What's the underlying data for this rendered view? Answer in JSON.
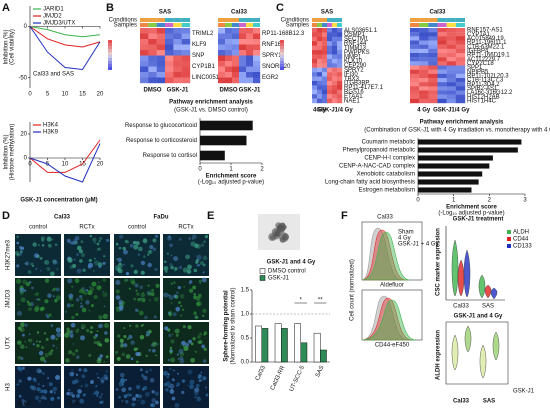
{
  "letters": [
    "A",
    "B",
    "C",
    "D",
    "E",
    "F"
  ],
  "chart_data": [
    {
      "type": "line",
      "y_label": [
        "Inhibition (%)",
        "(Cell viability)"
      ],
      "annotation": "Cal33 and SAS",
      "x": [
        0,
        5,
        10,
        15,
        20
      ],
      "xlim": [
        0,
        20
      ],
      "xticks": [
        0,
        5,
        10,
        15,
        20
      ],
      "ylim": [
        -60,
        20
      ],
      "yticks": [
        -50,
        0
      ],
      "legend": "upper left",
      "series": [
        {
          "name": "JARID1",
          "color": "#3cb44b",
          "values": [
            0,
            -3,
            -8,
            -10,
            -8
          ]
        },
        {
          "name": "JMJD2",
          "color": "#e02020",
          "values": [
            0,
            -12,
            -18,
            -20,
            -15
          ]
        },
        {
          "name": "JMJD3/UTX",
          "color": "#2030c0",
          "values": [
            0,
            -25,
            -40,
            -42,
            -15
          ]
        }
      ]
    },
    {
      "type": "line",
      "y_label": [
        "Inhibition (%)",
        "(Histone methylation)"
      ],
      "x_label": "GSK-J1 concentration (μM)",
      "x": [
        0,
        5,
        10,
        15,
        20
      ],
      "xlim": [
        0,
        20
      ],
      "xticks": [
        0,
        5,
        10,
        15,
        20
      ],
      "ylim": [
        -20,
        30
      ],
      "yticks": [
        0,
        20
      ],
      "legend": "upper left",
      "series": [
        {
          "name": "H3K4",
          "color": "#e02020",
          "values": [
            0,
            -12,
            -12,
            -5,
            15
          ]
        },
        {
          "name": "H3K9",
          "color": "#2030c0",
          "values": [
            0,
            -5,
            -15,
            -20,
            12
          ]
        }
      ]
    },
    {
      "type": "hbar",
      "title": "Pathway enrichment analysis",
      "subtitle": "(GSK-J1 vs. DMSO control)",
      "categories": [
        "Response to glucocorticoid",
        "Response to corticosteroid",
        "Response to cortisol"
      ],
      "values": [
        1.7,
        1.5,
        0.8
      ],
      "color": "#111111",
      "xlim": [
        0,
        2
      ],
      "xticks": [
        0,
        1,
        2
      ],
      "x_label": [
        "Enrichment score",
        "(-Log₁₀ adjusted p-value)"
      ]
    },
    {
      "type": "hbar",
      "title": "Pathway enrichment analysis",
      "subtitle": "(Combination of GSK-J1 with 4 Gy irradiation vs. monotherapy with 4 Gy)",
      "categories": [
        "Coumarin metabolic",
        "Phenylpropanoid metabolic",
        "CENP-H-I complex",
        "CENP-A-NAC-CAD complex",
        "Xenobiotic catabolism",
        "Long-chain fatty acid biosynthesis",
        "Estrogen metabolism"
      ],
      "values": [
        2.9,
        2.8,
        2.1,
        2.0,
        1.8,
        1.7,
        1.5
      ],
      "color": "#111111",
      "xlim": [
        0,
        3
      ],
      "xticks": [
        0,
        1,
        2,
        3
      ],
      "x_label": [
        "Enrichment score",
        "(-Log₁₀ adjusted p-value)"
      ]
    },
    {
      "type": "bar",
      "title": "GSK-J1 and 4 Gy",
      "y_label": [
        "Sphere-forming potential",
        "(Normalized to sham control)"
      ],
      "categories": [
        "Cal33",
        "Cal33-RR",
        "UT-SCC-5",
        "SAS"
      ],
      "series": [
        {
          "name": "DMSO control",
          "color": "#ffffff",
          "values": [
            0.75,
            0.8,
            0.8,
            0.6
          ]
        },
        {
          "name": "GSK-J1",
          "color": "#2e8b57",
          "values": [
            0.7,
            0.7,
            0.4,
            0.25
          ]
        }
      ],
      "ylim": [
        0,
        1.5
      ],
      "yticks": [
        {
          "value": 0,
          "label": "0.0"
        },
        0.5,
        {
          "value": 1,
          "label": "1.0"
        },
        1.5
      ],
      "annotations": [
        "*",
        "**"
      ]
    }
  ],
  "heatmap_b": {
    "rows": [
      "Conditions",
      "Samples"
    ],
    "conditions": [
      "DMSO",
      "GSK-J1"
    ],
    "panels": [
      {
        "title": "SAS",
        "genes": [
          "TRIML2",
          "KLF9",
          "SNP",
          "CYP1B1",
          "LINC00511"
        ]
      },
      {
        "title": "Cal33",
        "genes": [
          "RP11-168B12.3",
          "RNF166",
          "SPRY1",
          "SNORD20",
          "EGR2"
        ]
      }
    ]
  },
  "heatmap_c": {
    "rows": [
      "Conditions",
      "Samples"
    ],
    "conditions": [
      "4 Gy",
      "GSK-J1/4 Gy"
    ],
    "panels": [
      {
        "title": "SAS",
        "genes": [
          "ALS03651.1",
          "OSMP1",
          "SECTM1",
          "RNF144",
          "TIMM13",
          "PWPPKS",
          "MMP1",
          "KLK10",
          "CEP290",
          "SPRY2",
          "IFI30",
          "TBX3",
          "ITGB3BP",
          "RP11-417E7.1",
          "RGS16",
          "ETAA1",
          "NAE1"
        ]
      },
      {
        "title": "Cal33",
        "genes": [
          "RNF157-AS1",
          "CYP1A1",
          "AC015849.19",
          "RP11-196I11.1",
          "CTB-63M22.1",
          "IGFBP4",
          "RP11-166D19.1",
          "AC112229.7",
          "CYP2C18",
          "SPP1",
          "NPIPB5",
          "RP11-102L20.3",
          "CTB-113C7.3",
          "RP11-3D4.2",
          "SPIB2-AS1",
          "LA16c-316G12.2",
          "HIST2H2AB",
          "HIST1H4C"
        ]
      }
    ]
  },
  "panel_d": {
    "lines": [
      "Cal33",
      "FaDu"
    ],
    "treatments": [
      "control",
      "RCTx",
      "control",
      "RCTx"
    ],
    "stains": [
      "H3K27me3",
      "JMJD3",
      "UTX",
      "H3"
    ],
    "ids": [
      "#264",
      "#138",
      "#20",
      "#21"
    ]
  },
  "panel_f": {
    "cell_line": "Cal33",
    "legend": [
      "Sham",
      "4 Gy",
      "GSK-J1 + 4 Gy"
    ],
    "legend_colors": [
      "#9a9a9a",
      "#e03030",
      "#3cb44b"
    ],
    "y_label": "Cell count (normalized)",
    "x_labels": [
      "Aldefluor",
      "CD44-eF450"
    ],
    "violin_top": {
      "title": "GSK-J1 treatment",
      "y_label": "CSC marker expression",
      "legend": [
        "ALDH",
        "CD44",
        "CD133"
      ],
      "legend_colors": [
        "#3cb44b",
        "#e02020",
        "#2030c0"
      ],
      "categories": [
        "Cal33",
        "SAS"
      ]
    },
    "violin_bottom": {
      "title": "GSK-J1 and 4 Gy",
      "y_label": "ALDH expression",
      "factor": "GSK-J1",
      "categories": [
        "Cal33",
        "SAS"
      ]
    }
  }
}
